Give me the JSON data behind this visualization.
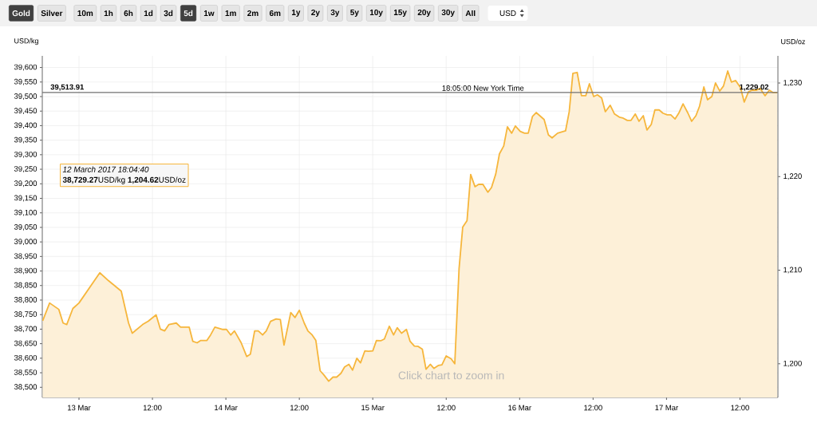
{
  "chart_data": {
    "type": "area",
    "ylabel": "USD/kg",
    "y2label": "USD/oz",
    "x": [
      "2017-03-12T18:04",
      "2017-03-12T19:12",
      "2017-03-12T20:42",
      "2017-03-12T21:24",
      "2017-03-12T22:00",
      "2017-03-12T23:00",
      "2017-03-13T00:00",
      "2017-03-13T03:24",
      "2017-03-13T04:48",
      "2017-03-13T06:54",
      "2017-03-13T08:06",
      "2017-03-13T08:42",
      "2017-03-13T10:24",
      "2017-03-13T11:18",
      "2017-03-13T12:36",
      "2017-03-13T13:18",
      "2017-03-13T14:00",
      "2017-03-13T14:42",
      "2017-03-13T15:54",
      "2017-03-13T16:36",
      "2017-03-13T18:00",
      "2017-03-13T18:36",
      "2017-03-13T19:18",
      "2017-03-13T19:54",
      "2017-03-13T20:54",
      "2017-03-13T21:30",
      "2017-03-13T22:12",
      "2017-03-13T23:30",
      "2017-03-14T00:06",
      "2017-03-14T00:48",
      "2017-03-14T01:24",
      "2017-03-14T02:30",
      "2017-03-14T03:24",
      "2017-03-14T04:00",
      "2017-03-14T04:42",
      "2017-03-14T05:18",
      "2017-03-14T06:00",
      "2017-03-14T06:36",
      "2017-03-14T07:18",
      "2017-03-14T08:12",
      "2017-03-14T08:54",
      "2017-03-14T09:30",
      "2017-03-14T10:36",
      "2017-03-14T11:18",
      "2017-03-14T12:00",
      "2017-03-14T12:48",
      "2017-03-14T13:24",
      "2017-03-14T14:06",
      "2017-03-14T14:42",
      "2017-03-14T15:24",
      "2017-03-14T16:00",
      "2017-03-14T16:48",
      "2017-03-14T17:30",
      "2017-03-14T18:06",
      "2017-03-14T18:48",
      "2017-03-14T19:24",
      "2017-03-14T20:06",
      "2017-03-14T20:42",
      "2017-03-14T21:24",
      "2017-03-14T22:00",
      "2017-03-14T22:42",
      "2017-03-14T23:18",
      "2017-03-15T00:00",
      "2017-03-15T00:36",
      "2017-03-15T01:18",
      "2017-03-15T01:54",
      "2017-03-15T02:42",
      "2017-03-15T03:24",
      "2017-03-15T04:00",
      "2017-03-15T04:42",
      "2017-03-15T05:30",
      "2017-03-15T06:06",
      "2017-03-15T06:48",
      "2017-03-15T07:24",
      "2017-03-15T08:06",
      "2017-03-15T08:42",
      "2017-03-15T09:24",
      "2017-03-15T10:00",
      "2017-03-15T10:42",
      "2017-03-15T11:18",
      "2017-03-15T12:00",
      "2017-03-15T12:48",
      "2017-03-15T13:24",
      "2017-03-15T14:06",
      "2017-03-15T14:42",
      "2017-03-15T15:24",
      "2017-03-15T16:00",
      "2017-03-15T16:42",
      "2017-03-15T17:18",
      "2017-03-15T18:00",
      "2017-03-15T18:48",
      "2017-03-15T19:24",
      "2017-03-15T20:06",
      "2017-03-15T20:42",
      "2017-03-15T21:24",
      "2017-03-15T22:00",
      "2017-03-15T22:42",
      "2017-03-15T23:18",
      "2017-03-16T00:06",
      "2017-03-16T00:48",
      "2017-03-16T01:24",
      "2017-03-16T02:06",
      "2017-03-16T02:42",
      "2017-03-16T04:00",
      "2017-03-16T04:42",
      "2017-03-16T05:18",
      "2017-03-16T06:12",
      "2017-03-16T07:30",
      "2017-03-16T08:06",
      "2017-03-16T08:42",
      "2017-03-16T09:24",
      "2017-03-16T10:06",
      "2017-03-16T10:48",
      "2017-03-16T11:24",
      "2017-03-16T12:06",
      "2017-03-16T12:42",
      "2017-03-16T13:24",
      "2017-03-16T14:00",
      "2017-03-16T14:48",
      "2017-03-16T15:30",
      "2017-03-16T16:18",
      "2017-03-16T16:54",
      "2017-03-16T17:36",
      "2017-03-16T18:12",
      "2017-03-16T18:54",
      "2017-03-16T19:30",
      "2017-03-16T20:12",
      "2017-03-16T20:48",
      "2017-03-16T21:30",
      "2017-03-16T22:06",
      "2017-03-16T22:48",
      "2017-03-16T23:24",
      "2017-03-17T00:06",
      "2017-03-17T00:42",
      "2017-03-17T01:24",
      "2017-03-17T02:00",
      "2017-03-17T02:42",
      "2017-03-17T03:30",
      "2017-03-17T04:06",
      "2017-03-17T04:48",
      "2017-03-17T05:24",
      "2017-03-17T06:06",
      "2017-03-17T06:42",
      "2017-03-17T07:24",
      "2017-03-17T08:00",
      "2017-03-17T08:42",
      "2017-03-17T09:18",
      "2017-03-17T10:00",
      "2017-03-17T10:36",
      "2017-03-17T11:18",
      "2017-03-17T12:06",
      "2017-03-17T12:42",
      "2017-03-17T13:24",
      "2017-03-17T14:00",
      "2017-03-17T14:42",
      "2017-03-17T15:18",
      "2017-03-17T16:06",
      "2017-03-17T16:48",
      "2017-03-17T17:24",
      "2017-03-17T18:05"
    ],
    "series": [
      {
        "color": "#f6b63c",
        "values": [
          38729,
          38790,
          38768,
          38721,
          38716,
          38771,
          38790,
          38894,
          38867,
          38831,
          38721,
          38686,
          38716,
          38727,
          38749,
          38700,
          38694,
          38716,
          38721,
          38707,
          38707,
          38658,
          38653,
          38661,
          38661,
          38680,
          38707,
          38699,
          38699,
          38680,
          38694,
          38653,
          38606,
          38614,
          38694,
          38694,
          38680,
          38694,
          38727,
          38735,
          38733,
          38645,
          38757,
          38740,
          38765,
          38721,
          38694,
          38680,
          38661,
          38557,
          38543,
          38521,
          38535,
          38535,
          38548,
          38570,
          38579,
          38559,
          38600,
          38584,
          38625,
          38624,
          38625,
          38661,
          38660,
          38666,
          38710,
          38680,
          38705,
          38686,
          38699,
          38658,
          38642,
          38641,
          38631,
          38562,
          38579,
          38565,
          38575,
          38577,
          38608,
          38598,
          38581,
          38908,
          39051,
          39073,
          39232,
          39190,
          39198,
          39198,
          39171,
          39187,
          39234,
          39303,
          39330,
          39396,
          39374,
          39399,
          39380,
          39374,
          39374,
          39432,
          39445,
          39421,
          39368,
          39358,
          39374,
          39382,
          39448,
          39580,
          39583,
          39503,
          39503,
          39544,
          39500,
          39506,
          39495,
          39448,
          39470,
          39440,
          39429,
          39426,
          39418,
          39418,
          39440,
          39415,
          39434,
          39385,
          39404,
          39454,
          39454,
          39443,
          39437,
          39437,
          39423,
          39443,
          39475,
          39443,
          39415,
          39434,
          39467,
          39533,
          39489,
          39500,
          39547,
          39519,
          39536,
          39588,
          39550,
          39555,
          39530,
          39481,
          39517,
          39522,
          39522,
          39528,
          39503,
          39522,
          39514,
          39514
        ]
      }
    ],
    "xlim": [
      "2017-03-12T18:00",
      "2017-03-17T18:12"
    ],
    "xticks": [
      {
        "value": "2017-03-13T00:00",
        "label": "13 Mar"
      },
      {
        "value": "2017-03-13T12:00",
        "label": "12:00"
      },
      {
        "value": "2017-03-14T00:00",
        "label": "14 Mar"
      },
      {
        "value": "2017-03-14T12:00",
        "label": "12:00"
      },
      {
        "value": "2017-03-15T00:00",
        "label": "15 Mar"
      },
      {
        "value": "2017-03-15T12:00",
        "label": "12:00"
      },
      {
        "value": "2017-03-16T00:00",
        "label": "16 Mar"
      },
      {
        "value": "2017-03-16T12:00",
        "label": "12:00"
      },
      {
        "value": "2017-03-17T00:00",
        "label": "17 Mar"
      },
      {
        "value": "2017-03-17T12:00",
        "label": "12:00"
      }
    ],
    "ylim": [
      38465,
      39640
    ],
    "yticks": [
      {
        "value": 38500,
        "label": "38,500"
      },
      {
        "value": 38550,
        "label": "38,550"
      },
      {
        "value": 38600,
        "label": "38,600"
      },
      {
        "value": 38650,
        "label": "38,650"
      },
      {
        "value": 38700,
        "label": "38,700"
      },
      {
        "value": 38750,
        "label": "38,750"
      },
      {
        "value": 38800,
        "label": "38,800"
      },
      {
        "value": 38850,
        "label": "38,850"
      },
      {
        "value": 38900,
        "label": "38,900"
      },
      {
        "value": 38950,
        "label": "38,950"
      },
      {
        "value": 39000,
        "label": "39,000"
      },
      {
        "value": 39050,
        "label": "39,050"
      },
      {
        "value": 39100,
        "label": "39,100"
      },
      {
        "value": 39150,
        "label": "39,150"
      },
      {
        "value": 39200,
        "label": "39,200"
      },
      {
        "value": 39250,
        "label": "39,250"
      },
      {
        "value": 39300,
        "label": "39,300"
      },
      {
        "value": 39350,
        "label": "39,350"
      },
      {
        "value": 39400,
        "label": "39,400"
      },
      {
        "value": 39450,
        "label": "39,450"
      },
      {
        "value": 39500,
        "label": "39,500"
      },
      {
        "value": 39550,
        "label": "39,550"
      },
      {
        "value": 39600,
        "label": "39,600"
      }
    ],
    "y2lim": [
      1196.4,
      1232.9
    ],
    "y2ticks": [
      {
        "value": 1200,
        "label": "1,200"
      },
      {
        "value": 1210,
        "label": "1,210"
      },
      {
        "value": 1220,
        "label": "1,220"
      },
      {
        "value": 1230,
        "label": "1,230"
      }
    ],
    "grid": true,
    "ref_lines": [
      {
        "axis": "y",
        "value": 39513.91,
        "label": "39,513.91",
        "color": "#707070"
      }
    ],
    "annotations": [
      {
        "text": "18:05:00 New York Time",
        "x": "2017-03-15T18:00",
        "y": 39513.91
      },
      {
        "text": "1,229.02",
        "x": "2017-03-17T14:18",
        "y": 39513.91
      },
      "12 March 2017 18:04:40",
      "**38,729.27**USD/kg **1,204.62**USD/oz",
      "Click chart to zoom in",
      "Gold",
      "Silver",
      "10m",
      "1h",
      "6h",
      "1d",
      "3d",
      "5d",
      "1w",
      "1m",
      "2m",
      "6m",
      "1y",
      "2y",
      "3y",
      "5y",
      "10y",
      "15y",
      "20y",
      "30y",
      "All",
      "USD"
    ]
  }
}
